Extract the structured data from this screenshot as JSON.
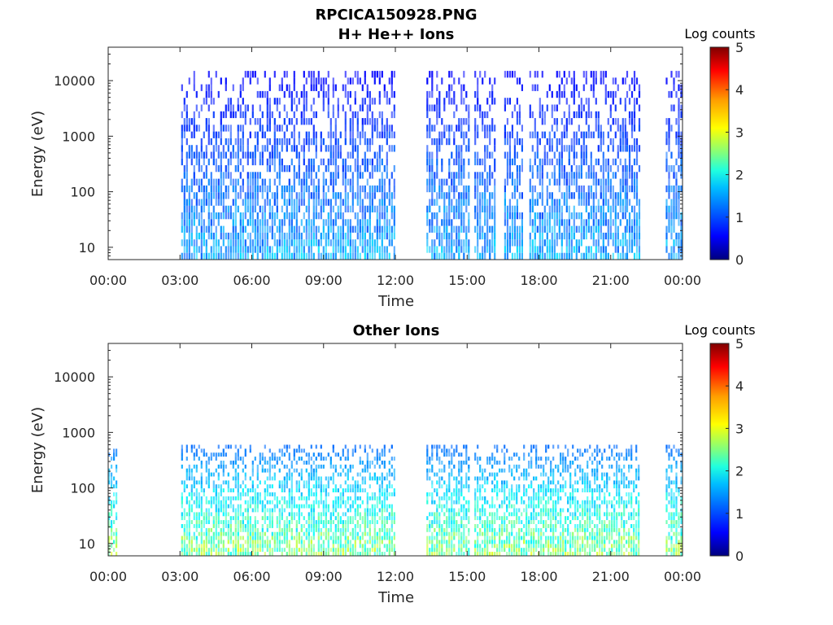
{
  "figure": {
    "title_line1": "RPCICA150928.PNG"
  },
  "colors": {
    "axis": "#262626",
    "colormap": [
      "#00007f",
      "#0000ff",
      "#007fff",
      "#00ffff",
      "#7fff7f",
      "#ffff00",
      "#ff7f00",
      "#ff0000",
      "#7f0000"
    ]
  },
  "chart_data": [
    {
      "type": "heatmap",
      "title": "H+ He++ Ions",
      "xlabel": "Time",
      "ylabel": "Energy (eV)",
      "x_ticks": [
        "00:00",
        "03:00",
        "06:00",
        "09:00",
        "12:00",
        "15:00",
        "18:00",
        "21:00",
        "00:00"
      ],
      "x_tick_hours": [
        0,
        3,
        6,
        9,
        12,
        15,
        18,
        21,
        24
      ],
      "xlim_hours": [
        0,
        24
      ],
      "y_scale": "log",
      "y_ticks": [
        "10",
        "100",
        "1000",
        "10000"
      ],
      "y_tick_values": [
        10,
        100,
        1000,
        10000
      ],
      "ylim": [
        6,
        40000
      ],
      "colorbar": {
        "label": "Log counts",
        "ticks": [
          "0",
          "1",
          "2",
          "3",
          "4",
          "5"
        ],
        "range": [
          0,
          5
        ]
      },
      "data_intervals_hours": [
        [
          3.05,
          11.95
        ],
        [
          13.3,
          15.05
        ],
        [
          15.3,
          16.2
        ],
        [
          16.55,
          17.3
        ],
        [
          17.6,
          21.6
        ],
        [
          21.65,
          22.2
        ],
        [
          23.3,
          23.95
        ]
      ],
      "energy_envelope_eV": [
        6,
        15000
      ],
      "log_counts_typical": [
        0,
        1.2
      ]
    },
    {
      "type": "heatmap",
      "title": "Other Ions",
      "xlabel": "Time",
      "ylabel": "Energy (eV)",
      "x_ticks": [
        "00:00",
        "03:00",
        "06:00",
        "09:00",
        "12:00",
        "15:00",
        "18:00",
        "21:00",
        "00:00"
      ],
      "x_tick_hours": [
        0,
        3,
        6,
        9,
        12,
        15,
        18,
        21,
        24
      ],
      "xlim_hours": [
        0,
        24
      ],
      "y_scale": "log",
      "y_ticks": [
        "10",
        "100",
        "1000",
        "10000"
      ],
      "y_tick_values": [
        10,
        100,
        1000,
        10000
      ],
      "ylim": [
        6,
        40000
      ],
      "colorbar": {
        "label": "Log counts",
        "ticks": [
          "0",
          "1",
          "2",
          "3",
          "4",
          "5"
        ],
        "range": [
          0,
          5
        ]
      },
      "data_intervals_hours": [
        [
          0.0,
          0.35
        ],
        [
          3.05,
          11.95
        ],
        [
          13.3,
          15.05
        ],
        [
          15.3,
          22.2
        ],
        [
          23.3,
          23.95
        ]
      ],
      "energy_envelope_eV": [
        6,
        600
      ],
      "log_counts_typical": [
        0.5,
        2.5
      ]
    }
  ]
}
